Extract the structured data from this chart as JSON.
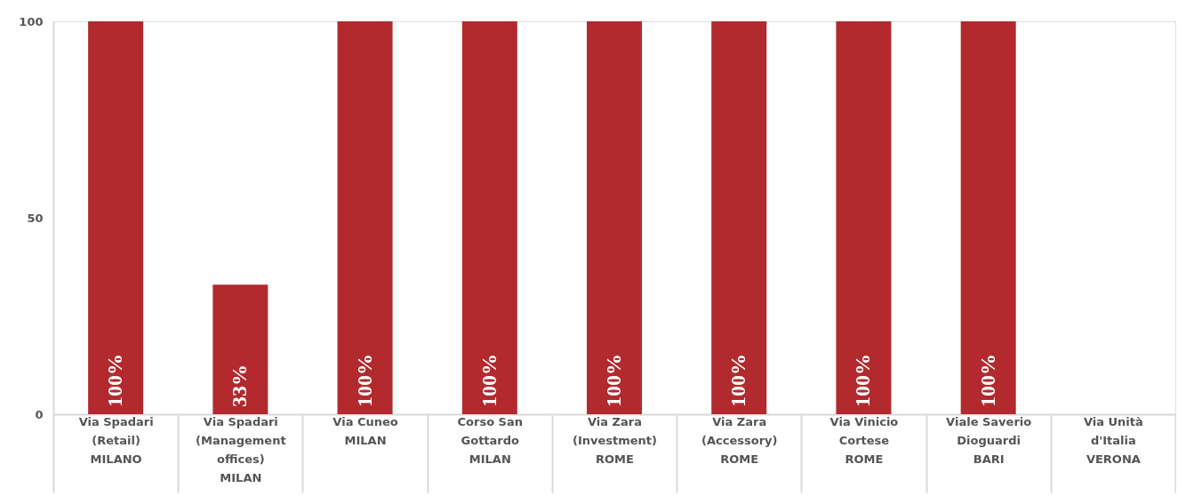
{
  "chart_data": {
    "type": "bar",
    "categories": [
      "Via Spadari\n(Retail)\nMILANO",
      "Via Spadari\n(Management\noffices)\nMILAN",
      "Via Cuneo\nMILAN",
      "Corso San\nGottardo\nMILAN",
      "Via Zara\n(Investment)\nROME",
      "Via Zara\n(Accessory)\nROME",
      "Via Vinicio\nCortese\nROME",
      "Viale Saverio\nDioguardi\nBARI",
      "Via Unità\nd'Italia\nVERONA"
    ],
    "values": [
      100,
      33,
      100,
      100,
      100,
      100,
      100,
      100,
      null
    ],
    "value_labels": [
      "100%",
      "33%",
      "100%",
      "100%",
      "100%",
      "100%",
      "100%",
      "100%",
      null
    ],
    "color": "#b22a2e",
    "ylim": [
      0,
      100
    ],
    "yticks": [
      0,
      50,
      100
    ],
    "grid": false
  }
}
